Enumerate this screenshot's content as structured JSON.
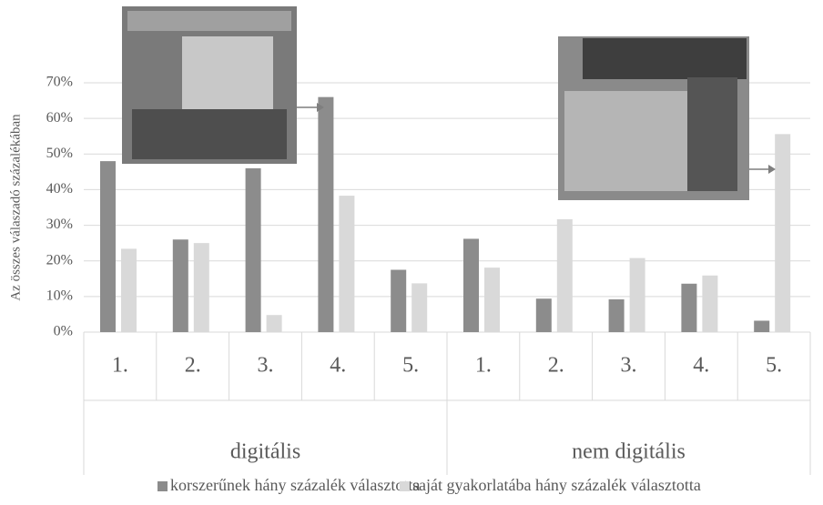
{
  "chart_data": {
    "type": "bar",
    "y_label": "Az összes válaszadó százalékában",
    "categories": [
      "1.",
      "2.",
      "3.",
      "4.",
      "5.",
      "1.",
      "2.",
      "3.",
      "4.",
      "5."
    ],
    "groups": [
      "digitális",
      "nem digitális"
    ],
    "series": [
      {
        "name": "korszerűnek hány százalék választotta",
        "color": "#8c8c8c",
        "values": [
          48,
          26,
          46,
          66,
          17.5,
          26.2,
          9.4,
          9.2,
          13.6,
          3.2
        ]
      },
      {
        "name": "saját gyakorlatába hány százalék választotta",
        "color": "#d9d9d9",
        "values": [
          23.4,
          25,
          4.8,
          38.3,
          13.7,
          18.1,
          31.7,
          20.8,
          15.9,
          55.6
        ]
      }
    ],
    "ylim": [
      0,
      70
    ],
    "yticks": [
      {
        "value": 0,
        "label": "0%"
      },
      {
        "value": 10,
        "label": "10%"
      },
      {
        "value": 20,
        "label": "20%"
      },
      {
        "value": 30,
        "label": "30%"
      },
      {
        "value": 40,
        "label": "40%"
      },
      {
        "value": 50,
        "label": "50%"
      },
      {
        "value": 60,
        "label": "60%"
      },
      {
        "value": 70,
        "label": "70%"
      }
    ],
    "grid": true
  }
}
